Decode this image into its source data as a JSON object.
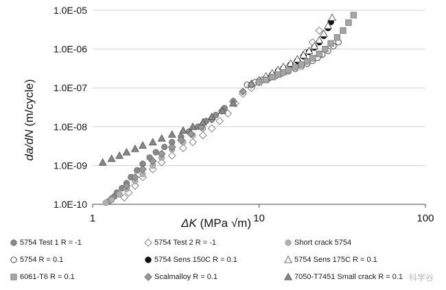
{
  "chart_data": {
    "type": "scatter",
    "xscale": "log",
    "yscale": "log",
    "xlim": [
      1,
      100
    ],
    "ylim": [
      1e-10,
      1e-05
    ],
    "xlabel_main": "ΔK",
    "xlabel_unit": " (MPa √m)",
    "ylabel_main": "da/dN",
    "ylabel_unit": " (m/cycle)",
    "x_ticks": [
      {
        "v": 1,
        "label": "1"
      },
      {
        "v": 10,
        "label": "10"
      },
      {
        "v": 100,
        "label": "100"
      }
    ],
    "y_ticks": [
      {
        "v": 1e-10,
        "label": "1.0E-10"
      },
      {
        "v": 1e-09,
        "label": "1.0E-09"
      },
      {
        "v": 1e-08,
        "label": "1.0E-08"
      },
      {
        "v": 1e-07,
        "label": "1.0E-07"
      },
      {
        "v": 1e-06,
        "label": "1.0E-06"
      },
      {
        "v": 1e-05,
        "label": "1.0E-05"
      }
    ],
    "series": [
      {
        "name": "5754 Test 1 R = -1",
        "marker": "circle",
        "fill": "#8a8a8a",
        "stroke": "#6a6a6a",
        "x": [
          1.25,
          1.3,
          1.35,
          1.4,
          1.5,
          1.6,
          1.7,
          1.85,
          2.0,
          2.2,
          2.4,
          2.7,
          3.0,
          3.4,
          3.8,
          4.3,
          4.8,
          5.5,
          6.2,
          7.0
        ],
        "y": [
          1.2e-10,
          1.4e-10,
          1.6e-10,
          2e-10,
          2.6e-10,
          3.5e-10,
          5e-10,
          7.5e-10,
          1.1e-09,
          1.6e-09,
          2.2e-09,
          3e-09,
          4e-09,
          5.5e-09,
          7.5e-09,
          1e-08,
          1.4e-08,
          2e-08,
          3e-08,
          4.5e-08
        ]
      },
      {
        "name": "5754 Test 2 R = -1",
        "marker": "diamond",
        "fill": "#ffffff",
        "stroke": "#777777",
        "x": [
          1.55,
          1.65,
          1.8,
          2.0,
          2.3,
          2.6,
          3.0,
          3.5,
          4.0,
          4.6,
          5.2,
          5.8,
          6.5,
          7.2,
          8.0,
          9.0,
          10.0,
          11.5,
          13.0,
          15.0,
          17.0,
          19.0,
          21.0,
          23.0
        ],
        "y": [
          1.5e-10,
          2e-10,
          3e-10,
          5e-10,
          8e-10,
          1.2e-09,
          1.8e-09,
          2.8e-09,
          4e-09,
          6e-09,
          9e-09,
          1.4e-08,
          2.2e-08,
          4e-08,
          7e-08,
          1e-07,
          1.4e-07,
          1.8e-07,
          2.4e-07,
          3.5e-07,
          5e-07,
          8e-07,
          1.5e-06,
          3e-06
        ]
      },
      {
        "name": "Short crack 5754",
        "marker": "circle",
        "fill": "#b0b0b0",
        "stroke": "#9a9a9a",
        "x": [
          1.2,
          1.3,
          1.45,
          1.6,
          1.8,
          2.0,
          2.3,
          2.6,
          3.0,
          3.5,
          4.0,
          4.6,
          5.2,
          6.0
        ],
        "y": [
          1.1e-10,
          1.3e-10,
          1.8e-10,
          2.5e-10,
          4e-10,
          6e-10,
          1e-09,
          1.6e-09,
          2.6e-09,
          4e-09,
          6e-09,
          9e-09,
          1.5e-08,
          2.5e-08
        ]
      },
      {
        "name": "5754 R = 0.1",
        "marker": "circle",
        "fill": "#ffffff",
        "stroke": "#333333",
        "x": [
          8.5,
          9.5,
          10.5,
          11.5,
          12.5,
          13.5,
          15.0,
          16.5,
          18.0,
          19.5,
          21.0,
          22.5,
          24.0,
          26.0,
          28.0,
          30.0
        ],
        "y": [
          1.2e-07,
          1.4e-07,
          1.6e-07,
          1.8e-07,
          2e-07,
          2.3e-07,
          2.7e-07,
          3.1e-07,
          3.6e-07,
          4.2e-07,
          5e-07,
          6e-07,
          7.2e-07,
          9e-07,
          1.2e-06,
          1.5e-06
        ]
      },
      {
        "name": "5754 Sens 150C R = 0.1",
        "marker": "circle",
        "fill": "#111111",
        "stroke": "#000000",
        "x": [
          9.0,
          10.0,
          11.0,
          12.0,
          13.0,
          14.0,
          15.5,
          17.0,
          18.5,
          20.0,
          21.5,
          23.0,
          24.5,
          26.0,
          27.0
        ],
        "y": [
          1.2e-07,
          1.5e-07,
          1.8e-07,
          2.2e-07,
          2.7e-07,
          3.2e-07,
          4e-07,
          5e-07,
          6.5e-07,
          8.5e-07,
          1.1e-06,
          1.5e-06,
          2.2e-06,
          3.5e-06,
          5e-06
        ]
      },
      {
        "name": "5754 Sens 175C R = 0.1",
        "marker": "triangle",
        "fill": "#ffffff",
        "stroke": "#555555",
        "x": [
          9.0,
          10.0,
          11.0,
          12.0,
          13.0,
          14.0,
          15.5,
          17.0,
          18.5,
          20.0,
          21.5,
          23.0,
          24.5,
          26.0,
          27.5
        ],
        "y": [
          1.3e-07,
          1.6e-07,
          2e-07,
          2.4e-07,
          2.9e-07,
          3.5e-07,
          4.3e-07,
          5.5e-07,
          7e-07,
          9e-07,
          1.2e-06,
          1.7e-06,
          2.5e-06,
          4e-06,
          6.5e-06
        ]
      },
      {
        "name": "6061-T6 R = 0.1",
        "marker": "square",
        "fill": "#a6a6a6",
        "stroke": "#7a7a7a",
        "x": [
          10.0,
          11.0,
          12.0,
          13.0,
          14.0,
          15.0,
          16.5,
          18.0,
          19.5,
          21.0,
          23.0,
          25.0,
          27.0,
          29.5,
          32.0,
          34.5,
          37.0
        ],
        "y": [
          1.4e-07,
          1.6e-07,
          1.9e-07,
          2.2e-07,
          2.5e-07,
          2.9e-07,
          3.4e-07,
          4e-07,
          4.8e-07,
          5.8e-07,
          7.5e-07,
          1e-06,
          1.4e-06,
          2e-06,
          3e-06,
          4.8e-06,
          7.5e-06
        ]
      },
      {
        "name": "Scalmalloy R = 0.1",
        "marker": "diamond",
        "fill": "#9a9a9a",
        "stroke": "#6a6a6a",
        "x": [
          1.6,
          1.8,
          2.0,
          2.3,
          2.6,
          3.0,
          3.4,
          3.9,
          4.5,
          5.2,
          6.0,
          7.0,
          8.0,
          9.0
        ],
        "y": [
          3e-10,
          5e-10,
          8e-10,
          1.3e-09,
          2e-09,
          3e-09,
          4.5e-09,
          6.5e-09,
          1e-08,
          1.6e-08,
          2.6e-08,
          4.5e-08,
          8e-08,
          1.2e-07
        ]
      },
      {
        "name": "7050-T7451 Small crack R = 0.1",
        "marker": "triangle",
        "fill": "#888888",
        "stroke": "#555555",
        "x": [
          1.15,
          1.3,
          1.45,
          1.6,
          1.8,
          2.0,
          2.3,
          2.6,
          3.0,
          3.5,
          4.0,
          4.6,
          5.2,
          6.0,
          7.0
        ],
        "y": [
          1.2e-09,
          1.5e-09,
          1.8e-09,
          2.2e-09,
          2.7e-09,
          3.3e-09,
          4e-09,
          5e-09,
          6.3e-09,
          8e-09,
          1e-08,
          1.3e-08,
          1.8e-08,
          2.6e-08,
          4e-08
        ]
      }
    ]
  },
  "watermark": "科学谷"
}
